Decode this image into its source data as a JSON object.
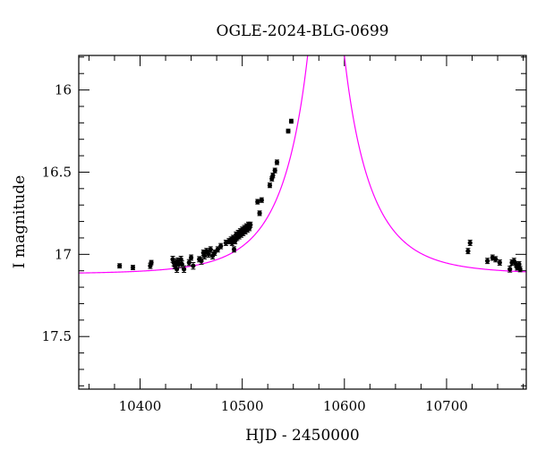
{
  "chart_data": {
    "type": "scatter",
    "title": "OGLE-2024-BLG-0699",
    "xlabel": "HJD - 2450000",
    "ylabel": "I magnitude",
    "xlim": [
      10340,
      10778
    ],
    "ylim": [
      17.82,
      15.79
    ],
    "y_inverted": true,
    "grid": false,
    "legend": "none",
    "xticks": [
      10400,
      10500,
      10600,
      10700
    ],
    "xtick_labels": [
      "10400",
      "10500",
      "10600",
      "10700"
    ],
    "yticks": [
      16,
      16.5,
      17,
      17.5
    ],
    "ytick_labels": [
      "16",
      "16.5",
      "17",
      "17.5"
    ],
    "colors": {
      "points": "#000000",
      "model": "#ff00ff"
    },
    "model": {
      "baseline": 17.12,
      "t0": 10582,
      "tE": 60,
      "u0": 0.05
    },
    "series": [
      {
        "points": [
          {
            "x": 10380,
            "y": 17.07,
            "err": 0.013
          },
          {
            "x": 10393,
            "y": 17.08,
            "err": 0.013
          },
          {
            "x": 10410,
            "y": 17.07,
            "err": 0.016
          },
          {
            "x": 10411,
            "y": 17.05,
            "err": 0.013
          },
          {
            "x": 10432,
            "y": 17.03,
            "err": 0.018
          },
          {
            "x": 10433,
            "y": 17.05,
            "err": 0.02
          },
          {
            "x": 10434,
            "y": 17.07,
            "err": 0.018
          },
          {
            "x": 10435,
            "y": 17.05,
            "err": 0.02
          },
          {
            "x": 10436,
            "y": 17.09,
            "err": 0.02
          },
          {
            "x": 10437,
            "y": 17.04,
            "err": 0.018
          },
          {
            "x": 10438,
            "y": 17.06,
            "err": 0.02
          },
          {
            "x": 10440,
            "y": 17.03,
            "err": 0.018
          },
          {
            "x": 10441,
            "y": 17.06,
            "err": 0.02
          },
          {
            "x": 10443,
            "y": 17.09,
            "err": 0.02
          },
          {
            "x": 10448,
            "y": 17.05,
            "err": 0.018
          },
          {
            "x": 10450,
            "y": 17.02,
            "err": 0.016
          },
          {
            "x": 10452,
            "y": 17.07,
            "err": 0.02
          },
          {
            "x": 10458,
            "y": 17.03,
            "err": 0.016
          },
          {
            "x": 10460,
            "y": 17.04,
            "err": 0.02
          },
          {
            "x": 10462,
            "y": 16.99,
            "err": 0.016
          },
          {
            "x": 10463,
            "y": 17.01,
            "err": 0.018
          },
          {
            "x": 10465,
            "y": 16.98,
            "err": 0.016
          },
          {
            "x": 10467,
            "y": 17.0,
            "err": 0.018
          },
          {
            "x": 10469,
            "y": 16.97,
            "err": 0.016
          },
          {
            "x": 10471,
            "y": 17.01,
            "err": 0.018
          },
          {
            "x": 10473,
            "y": 16.99,
            "err": 0.016
          },
          {
            "x": 10476,
            "y": 16.97,
            "err": 0.016
          },
          {
            "x": 10479,
            "y": 16.95,
            "err": 0.016
          },
          {
            "x": 10484,
            "y": 16.93,
            "err": 0.016
          },
          {
            "x": 10487,
            "y": 16.92,
            "err": 0.016
          },
          {
            "x": 10489,
            "y": 16.91,
            "err": 0.016
          },
          {
            "x": 10490,
            "y": 16.93,
            "err": 0.016
          },
          {
            "x": 10491,
            "y": 16.9,
            "err": 0.016
          },
          {
            "x": 10492,
            "y": 16.97,
            "err": 0.016
          },
          {
            "x": 10493,
            "y": 16.92,
            "err": 0.016
          },
          {
            "x": 10494,
            "y": 16.88,
            "err": 0.016
          },
          {
            "x": 10495,
            "y": 16.9,
            "err": 0.016
          },
          {
            "x": 10496,
            "y": 16.87,
            "err": 0.016
          },
          {
            "x": 10497,
            "y": 16.89,
            "err": 0.016
          },
          {
            "x": 10498,
            "y": 16.86,
            "err": 0.016
          },
          {
            "x": 10499,
            "y": 16.88,
            "err": 0.016
          },
          {
            "x": 10500,
            "y": 16.85,
            "err": 0.016
          },
          {
            "x": 10501,
            "y": 16.87,
            "err": 0.016
          },
          {
            "x": 10502,
            "y": 16.84,
            "err": 0.016
          },
          {
            "x": 10503,
            "y": 16.86,
            "err": 0.016
          },
          {
            "x": 10504,
            "y": 16.83,
            "err": 0.016
          },
          {
            "x": 10505,
            "y": 16.85,
            "err": 0.016
          },
          {
            "x": 10506,
            "y": 16.82,
            "err": 0.016
          },
          {
            "x": 10507,
            "y": 16.84,
            "err": 0.016
          },
          {
            "x": 10508,
            "y": 16.82,
            "err": 0.016
          },
          {
            "x": 10515,
            "y": 16.68,
            "err": 0.014
          },
          {
            "x": 10517,
            "y": 16.75,
            "err": 0.014
          },
          {
            "x": 10519,
            "y": 16.67,
            "err": 0.014
          },
          {
            "x": 10527,
            "y": 16.58,
            "err": 0.014
          },
          {
            "x": 10529,
            "y": 16.54,
            "err": 0.014
          },
          {
            "x": 10530,
            "y": 16.52,
            "err": 0.014
          },
          {
            "x": 10532,
            "y": 16.49,
            "err": 0.014
          },
          {
            "x": 10534,
            "y": 16.44,
            "err": 0.014
          },
          {
            "x": 10545,
            "y": 16.25,
            "err": 0.012
          },
          {
            "x": 10548,
            "y": 16.19,
            "err": 0.012
          },
          {
            "x": 10721,
            "y": 16.98,
            "err": 0.016
          },
          {
            "x": 10723,
            "y": 16.93,
            "err": 0.016
          },
          {
            "x": 10740,
            "y": 17.04,
            "err": 0.016
          },
          {
            "x": 10745,
            "y": 17.02,
            "err": 0.016
          },
          {
            "x": 10748,
            "y": 17.03,
            "err": 0.016
          },
          {
            "x": 10752,
            "y": 17.05,
            "err": 0.016
          },
          {
            "x": 10762,
            "y": 17.09,
            "err": 0.018
          },
          {
            "x": 10764,
            "y": 17.05,
            "err": 0.016
          },
          {
            "x": 10766,
            "y": 17.04,
            "err": 0.016
          },
          {
            "x": 10768,
            "y": 17.06,
            "err": 0.016
          },
          {
            "x": 10769,
            "y": 17.08,
            "err": 0.016
          },
          {
            "x": 10771,
            "y": 17.06,
            "err": 0.016
          },
          {
            "x": 10772,
            "y": 17.09,
            "err": 0.016
          }
        ]
      }
    ]
  }
}
